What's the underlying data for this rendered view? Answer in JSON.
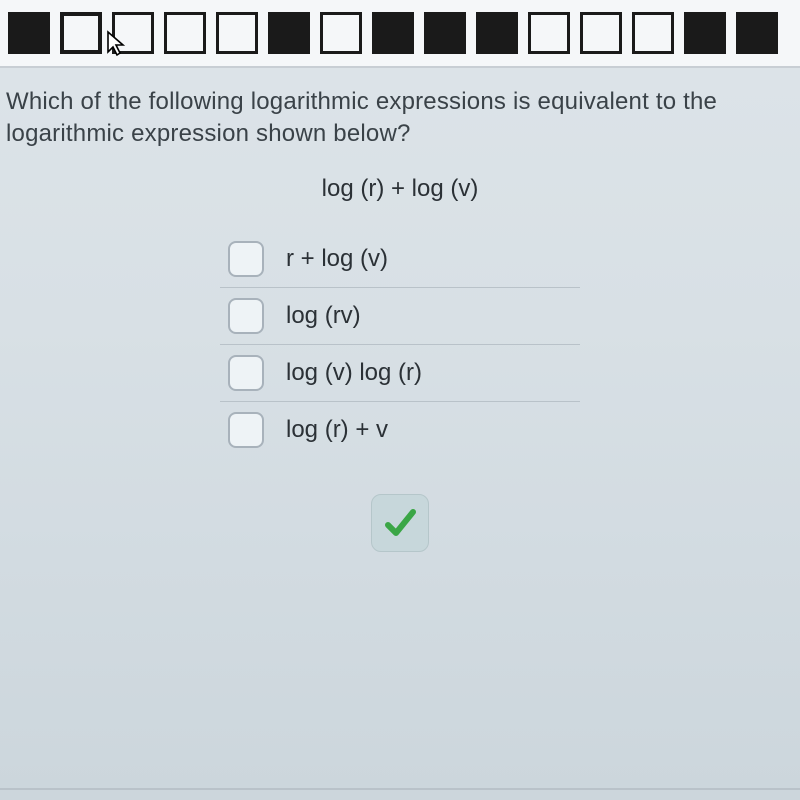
{
  "nav": {
    "boxes": [
      {
        "state": "filled"
      },
      {
        "state": "current"
      },
      {
        "state": "outline"
      },
      {
        "state": "outline"
      },
      {
        "state": "outline"
      },
      {
        "state": "filled"
      },
      {
        "state": "outline"
      },
      {
        "state": "filled"
      },
      {
        "state": "filled"
      },
      {
        "state": "filled"
      },
      {
        "state": "outline"
      },
      {
        "state": "outline"
      },
      {
        "state": "outline"
      },
      {
        "state": "filled"
      },
      {
        "state": "filled"
      }
    ]
  },
  "question": {
    "prompt": "Which of the following logarithmic expressions is equivalent to the logarithmic expression shown below?",
    "expression": "log (r)  +  log (v)"
  },
  "answers": [
    {
      "label": "r +  log (v)",
      "checked": false
    },
    {
      "label": "log (rv)",
      "checked": false
    },
    {
      "label": "log (v)   log (r)",
      "checked": false
    },
    {
      "label": "log (r)  + v",
      "checked": false
    }
  ],
  "colors": {
    "check_green": "#3aa646",
    "nav_dark": "#1a1a1a",
    "text": "#3a4248",
    "checkbox_border": "#a8b2bb",
    "submit_bg": "#c7d7db"
  }
}
